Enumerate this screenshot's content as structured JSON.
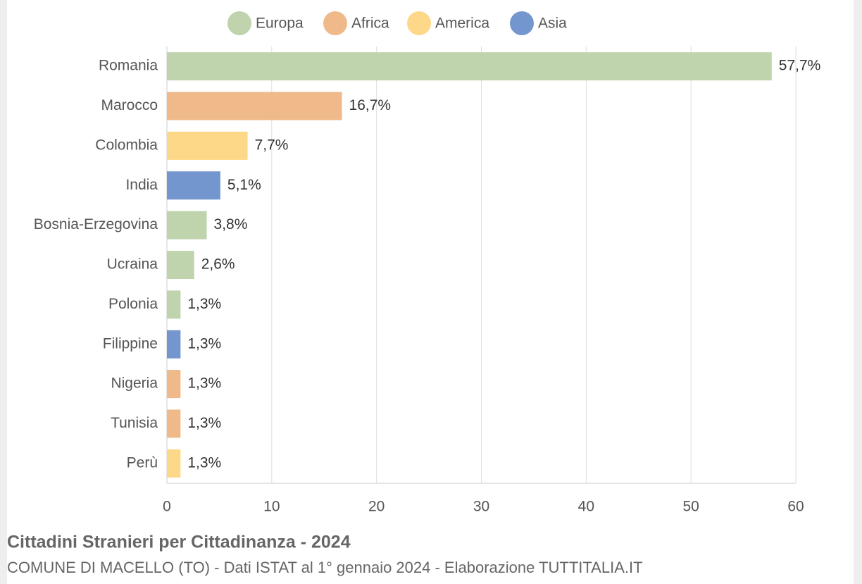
{
  "chart_data": {
    "type": "bar",
    "orientation": "horizontal",
    "title": "Cittadini Stranieri per Cittadinanza - 2024",
    "subtitle": "COMUNE DI MACELLO (TO) - Dati ISTAT al 1° gennaio 2024 - Elaborazione TUTTITALIA.IT",
    "categories": [
      "Romania",
      "Marocco",
      "Colombia",
      "India",
      "Bosnia-Erzegovina",
      "Ucraina",
      "Polonia",
      "Filippine",
      "Nigeria",
      "Tunisia",
      "Perù"
    ],
    "series": [
      {
        "name": "Europa",
        "color": "#bfd3ad",
        "values": [
          57.7,
          null,
          null,
          null,
          3.8,
          2.6,
          1.3,
          null,
          null,
          null,
          null
        ],
        "value_labels": [
          "57,7%",
          null,
          null,
          null,
          "3,8%",
          "2,6%",
          "1,3%",
          null,
          null,
          null,
          null
        ]
      },
      {
        "name": "Africa",
        "color": "#f0b98a",
        "values": [
          null,
          16.7,
          null,
          null,
          null,
          null,
          null,
          null,
          1.3,
          1.3,
          null
        ],
        "value_labels": [
          null,
          "16,7%",
          null,
          null,
          null,
          null,
          null,
          null,
          "1,3%",
          "1,3%",
          null
        ]
      },
      {
        "name": "America",
        "color": "#fdd888",
        "values": [
          null,
          null,
          7.7,
          null,
          null,
          null,
          null,
          null,
          null,
          null,
          1.3
        ],
        "value_labels": [
          null,
          null,
          "7,7%",
          null,
          null,
          null,
          null,
          null,
          null,
          null,
          "1,3%"
        ]
      },
      {
        "name": "Asia",
        "color": "#7396cf",
        "values": [
          null,
          null,
          null,
          5.1,
          null,
          null,
          null,
          1.3,
          null,
          null,
          null
        ],
        "value_labels": [
          null,
          null,
          null,
          "5,1%",
          null,
          null,
          null,
          "1,3%",
          null,
          null,
          null
        ]
      }
    ],
    "xlim": [
      0,
      60
    ],
    "xticks": [
      0,
      10,
      20,
      30,
      40,
      50,
      60
    ],
    "grid": true,
    "legend": "top"
  }
}
